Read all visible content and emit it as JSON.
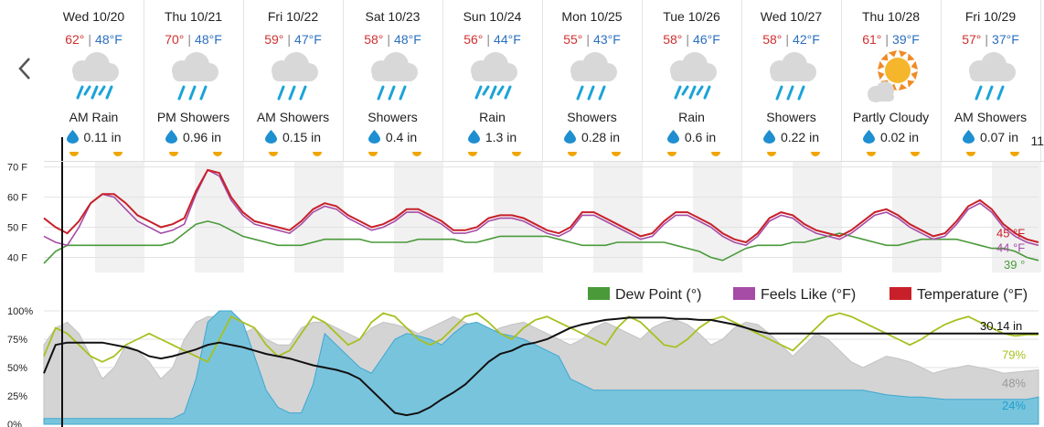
{
  "forecast": {
    "days": [
      {
        "date": "Wed 10/20",
        "high": "62°",
        "low": "48°F",
        "icon": "rain-icon",
        "condition": "AM Rain",
        "precip": "0.11 in"
      },
      {
        "date": "Thu 10/21",
        "high": "70°",
        "low": "48°F",
        "icon": "showers-icon",
        "condition": "PM Showers",
        "precip": "0.96 in"
      },
      {
        "date": "Fri 10/22",
        "high": "59°",
        "low": "47°F",
        "icon": "showers-icon",
        "condition": "AM Showers",
        "precip": "0.15 in"
      },
      {
        "date": "Sat 10/23",
        "high": "58°",
        "low": "48°F",
        "icon": "showers-icon",
        "condition": "Showers",
        "precip": "0.4 in"
      },
      {
        "date": "Sun 10/24",
        "high": "56°",
        "low": "44°F",
        "icon": "rain-icon",
        "condition": "Rain",
        "precip": "1.3 in"
      },
      {
        "date": "Mon 10/25",
        "high": "55°",
        "low": "43°F",
        "icon": "showers-icon",
        "condition": "Showers",
        "precip": "0.28 in"
      },
      {
        "date": "Tue 10/26",
        "high": "58°",
        "low": "46°F",
        "icon": "rain-icon",
        "condition": "Rain",
        "precip": "0.6 in"
      },
      {
        "date": "Wed 10/27",
        "high": "58°",
        "low": "42°F",
        "icon": "showers-icon",
        "condition": "Showers",
        "precip": "0.22 in"
      },
      {
        "date": "Thu 10/28",
        "high": "61°",
        "low": "39°F",
        "icon": "partly-cloudy-icon",
        "condition": "Partly Cloudy",
        "precip": "0.02 in"
      },
      {
        "date": "Fri 10/29",
        "high": "57°",
        "low": "37°F",
        "icon": "showers-icon",
        "condition": "AM Showers",
        "precip": "0.07 in"
      }
    ],
    "cutoff_text": "11",
    "separator": "|"
  },
  "colors": {
    "temperature": "#c8202a",
    "feels_like": "#a64ca6",
    "dew_point": "#4a9a3a",
    "humidity": "#a8c020",
    "cloud_cover": "#d4d4d4",
    "precip_chance": "#79c4dd",
    "pressure": "#111111"
  },
  "chart_data": [
    {
      "type": "line",
      "y_ticks": [
        "70 F",
        "60 F",
        "50 F",
        "40 F"
      ],
      "ylim": [
        35,
        72
      ],
      "legend": [
        "Dew Point (°)",
        "Feels Like (°F)",
        "Temperature (°F)"
      ],
      "legend_position": "bottom-right",
      "end_labels": {
        "temperature": "45 °F",
        "feels_like": "44 °F",
        "dew_point": "39 °"
      },
      "series": [
        {
          "name": "Temperature (°F)",
          "values": [
            53,
            50,
            48,
            52,
            58,
            61,
            61,
            58,
            54,
            52,
            50,
            51,
            53,
            62,
            69,
            68,
            60,
            55,
            52,
            51,
            50,
            49,
            52,
            56,
            58,
            57,
            54,
            52,
            50,
            51,
            53,
            56,
            56,
            54,
            52,
            49,
            49,
            50,
            53,
            54,
            54,
            53,
            51,
            49,
            48,
            50,
            55,
            55,
            53,
            51,
            49,
            47,
            48,
            52,
            55,
            55,
            53,
            51,
            48,
            46,
            45,
            48,
            53,
            55,
            54,
            51,
            49,
            48,
            47,
            49,
            52,
            55,
            56,
            54,
            51,
            49,
            47,
            48,
            52,
            57,
            59,
            56,
            51,
            48,
            46,
            45
          ]
        },
        {
          "name": "Feels Like (°F)",
          "values": [
            47,
            45,
            44,
            50,
            58,
            61,
            60,
            56,
            52,
            50,
            48,
            49,
            51,
            61,
            69,
            67,
            59,
            54,
            51,
            50,
            49,
            48,
            51,
            55,
            57,
            56,
            53,
            51,
            49,
            50,
            52,
            55,
            55,
            53,
            51,
            48,
            48,
            49,
            52,
            53,
            53,
            52,
            50,
            48,
            47,
            49,
            54,
            54,
            52,
            50,
            48,
            46,
            47,
            51,
            54,
            54,
            52,
            50,
            47,
            45,
            44,
            47,
            52,
            54,
            53,
            50,
            48,
            47,
            46,
            48,
            51,
            54,
            55,
            53,
            50,
            48,
            46,
            47,
            51,
            56,
            58,
            55,
            50,
            47,
            45,
            44
          ]
        },
        {
          "name": "Dew Point (°)",
          "values": [
            38,
            42,
            44,
            44,
            44,
            44,
            44,
            44,
            44,
            44,
            44,
            45,
            48,
            51,
            52,
            51,
            49,
            47,
            46,
            45,
            44,
            44,
            44,
            45,
            46,
            46,
            46,
            46,
            45,
            45,
            45,
            45,
            46,
            46,
            46,
            46,
            45,
            45,
            46,
            47,
            47,
            47,
            47,
            47,
            46,
            45,
            44,
            44,
            44,
            45,
            45,
            45,
            45,
            45,
            44,
            43,
            42,
            40,
            39,
            41,
            43,
            44,
            44,
            44,
            45,
            45,
            46,
            47,
            48,
            47,
            46,
            45,
            44,
            44,
            45,
            46,
            46,
            46,
            46,
            45,
            44,
            43,
            43,
            42,
            40,
            39
          ]
        }
      ]
    },
    {
      "type": "area",
      "y_ticks": [
        "100%",
        "75%",
        "50%",
        "25%",
        "0%"
      ],
      "ylim": [
        0,
        100
      ],
      "end_labels": {
        "pressure": "30.14 in",
        "humidity": "79%",
        "cloud_cover": "48%",
        "precip_chance": "24%"
      },
      "series": [
        {
          "name": "cloud_cover",
          "values": [
            70,
            85,
            90,
            80,
            60,
            40,
            50,
            70,
            65,
            55,
            40,
            50,
            75,
            90,
            95,
            95,
            90,
            80,
            85,
            75,
            70,
            70,
            85,
            90,
            90,
            85,
            80,
            75,
            85,
            90,
            88,
            85,
            80,
            85,
            90,
            95,
            90,
            85,
            80,
            85,
            88,
            90,
            85,
            80,
            75,
            70,
            75,
            85,
            90,
            85,
            80,
            75,
            85,
            90,
            92,
            88,
            80,
            70,
            75,
            85,
            90,
            88,
            80,
            70,
            60,
            70,
            80,
            75,
            65,
            55,
            50,
            55,
            60,
            58,
            55,
            50,
            45,
            48,
            50,
            52,
            50,
            48,
            45,
            46,
            47,
            48
          ]
        },
        {
          "name": "precip_chance",
          "values": [
            5,
            5,
            5,
            5,
            5,
            5,
            5,
            5,
            5,
            5,
            5,
            5,
            10,
            40,
            90,
            100,
            100,
            90,
            60,
            30,
            15,
            10,
            10,
            35,
            80,
            70,
            60,
            50,
            45,
            60,
            75,
            80,
            78,
            75,
            70,
            80,
            88,
            90,
            85,
            80,
            78,
            75,
            70,
            65,
            60,
            40,
            35,
            30,
            30,
            30,
            30,
            30,
            30,
            30,
            30,
            30,
            30,
            30,
            30,
            30,
            30,
            30,
            30,
            30,
            30,
            30,
            30,
            30,
            30,
            30,
            30,
            28,
            26,
            25,
            24,
            24,
            23,
            22,
            22,
            22,
            22,
            22,
            22,
            22,
            22,
            24
          ]
        },
        {
          "name": "humidity",
          "values": [
            60,
            85,
            80,
            70,
            60,
            55,
            60,
            70,
            75,
            80,
            75,
            70,
            65,
            60,
            55,
            75,
            95,
            90,
            85,
            70,
            60,
            65,
            80,
            95,
            90,
            80,
            70,
            75,
            90,
            98,
            95,
            85,
            75,
            70,
            75,
            85,
            95,
            98,
            90,
            80,
            75,
            85,
            92,
            95,
            90,
            85,
            80,
            75,
            70,
            85,
            95,
            90,
            80,
            70,
            68,
            75,
            85,
            92,
            95,
            90,
            85,
            80,
            75,
            70,
            65,
            75,
            85,
            95,
            98,
            95,
            90,
            85,
            80,
            75,
            70,
            75,
            82,
            88,
            92,
            95,
            90,
            85,
            80,
            78,
            79,
            79
          ]
        },
        {
          "name": "pressure",
          "values": [
            45,
            70,
            72,
            72,
            72,
            72,
            70,
            68,
            65,
            60,
            58,
            60,
            63,
            66,
            70,
            72,
            70,
            68,
            65,
            62,
            60,
            58,
            55,
            52,
            50,
            48,
            45,
            40,
            30,
            20,
            10,
            8,
            10,
            15,
            22,
            28,
            35,
            45,
            55,
            62,
            65,
            70,
            72,
            75,
            80,
            85,
            88,
            90,
            92,
            93,
            94,
            94,
            94,
            94,
            93,
            93,
            92,
            92,
            90,
            88,
            85,
            82,
            80,
            80,
            80,
            80,
            80,
            80,
            80,
            80,
            80,
            80,
            80,
            80,
            80,
            80,
            80,
            80,
            80,
            80,
            80,
            80,
            80,
            80,
            80,
            80
          ]
        }
      ]
    }
  ]
}
